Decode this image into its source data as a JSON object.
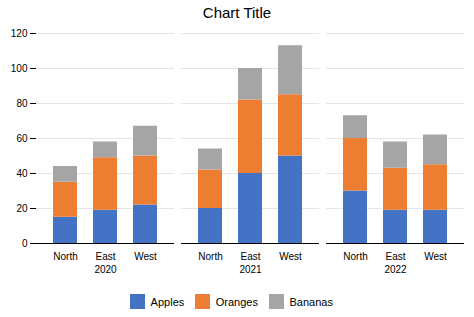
{
  "chart_data": {
    "type": "bar",
    "title": "Chart Title",
    "groups": [
      "2020",
      "2021",
      "2022"
    ],
    "categories": [
      "North",
      "East",
      "West"
    ],
    "series": [
      {
        "name": "Apples",
        "color": "#4472c4",
        "values": [
          [
            15,
            19,
            22
          ],
          [
            20,
            40,
            50
          ],
          [
            30,
            19,
            19
          ]
        ]
      },
      {
        "name": "Oranges",
        "color": "#ed7d31",
        "values": [
          [
            20,
            30,
            28
          ],
          [
            22,
            42,
            35
          ],
          [
            30,
            24,
            26
          ]
        ]
      },
      {
        "name": "Bananas",
        "color": "#a5a5a5",
        "values": [
          [
            9,
            9,
            17
          ],
          [
            12,
            18,
            28
          ],
          [
            13,
            15,
            17
          ]
        ]
      }
    ],
    "stacked": true,
    "ylim": [
      0,
      120
    ],
    "yticks": [
      0,
      20,
      40,
      60,
      80,
      100,
      120
    ],
    "grid": true,
    "legend": "bottom"
  }
}
